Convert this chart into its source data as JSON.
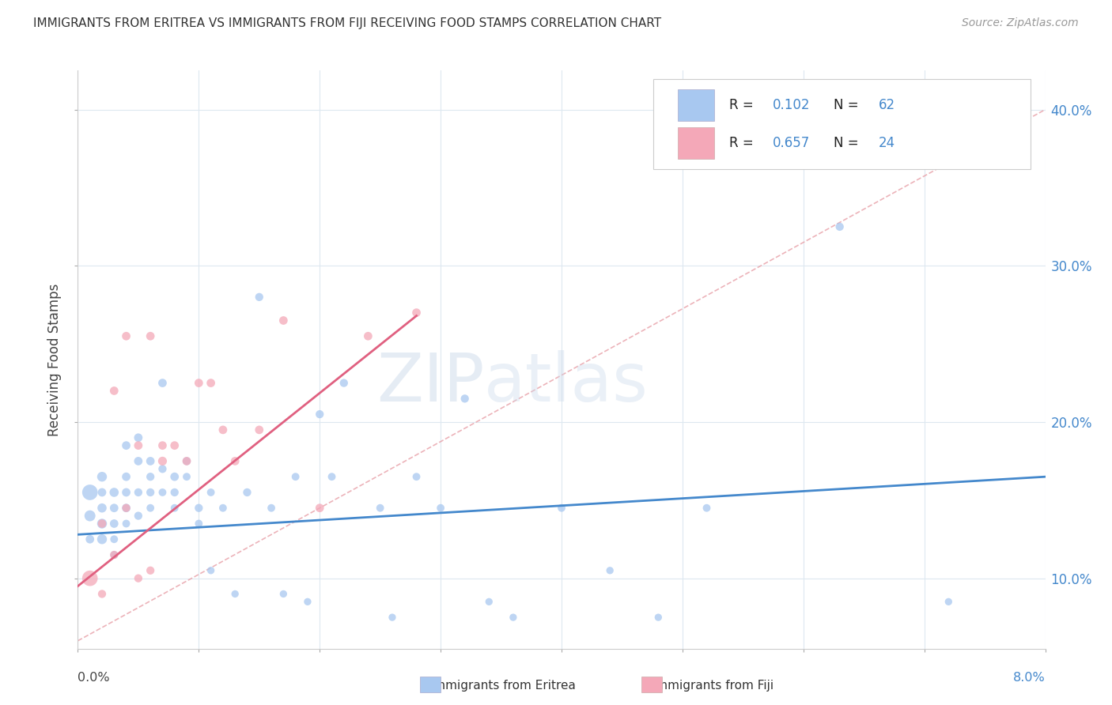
{
  "title": "IMMIGRANTS FROM ERITREA VS IMMIGRANTS FROM FIJI RECEIVING FOOD STAMPS CORRELATION CHART",
  "source": "Source: ZipAtlas.com",
  "ylabel": "Receiving Food Stamps",
  "yticks": [
    0.1,
    0.2,
    0.3,
    0.4
  ],
  "ytick_labels": [
    "10.0%",
    "20.0%",
    "30.0%",
    "40.0%"
  ],
  "xlim": [
    0.0,
    0.08
  ],
  "ylim": [
    0.055,
    0.425
  ],
  "watermark": "ZIPatlas",
  "color_eritrea": "#a8c8f0",
  "color_fiji": "#f4a8b8",
  "color_eritrea_line": "#4488cc",
  "color_fiji_line": "#e06080",
  "color_ref_line": "#e8a0a8",
  "eritrea_x": [
    0.001,
    0.001,
    0.001,
    0.002,
    0.002,
    0.002,
    0.002,
    0.002,
    0.003,
    0.003,
    0.003,
    0.003,
    0.003,
    0.004,
    0.004,
    0.004,
    0.004,
    0.004,
    0.005,
    0.005,
    0.005,
    0.005,
    0.006,
    0.006,
    0.006,
    0.006,
    0.007,
    0.007,
    0.007,
    0.008,
    0.008,
    0.008,
    0.009,
    0.009,
    0.01,
    0.01,
    0.011,
    0.011,
    0.012,
    0.013,
    0.014,
    0.015,
    0.016,
    0.017,
    0.018,
    0.019,
    0.02,
    0.021,
    0.022,
    0.025,
    0.026,
    0.028,
    0.03,
    0.032,
    0.034,
    0.036,
    0.04,
    0.044,
    0.048,
    0.052,
    0.063,
    0.072
  ],
  "eritrea_y": [
    0.155,
    0.14,
    0.125,
    0.165,
    0.155,
    0.145,
    0.135,
    0.125,
    0.155,
    0.145,
    0.135,
    0.125,
    0.115,
    0.185,
    0.165,
    0.155,
    0.145,
    0.135,
    0.19,
    0.175,
    0.155,
    0.14,
    0.175,
    0.165,
    0.155,
    0.145,
    0.225,
    0.17,
    0.155,
    0.165,
    0.155,
    0.145,
    0.175,
    0.165,
    0.145,
    0.135,
    0.155,
    0.105,
    0.145,
    0.09,
    0.155,
    0.28,
    0.145,
    0.09,
    0.165,
    0.085,
    0.205,
    0.165,
    0.225,
    0.145,
    0.075,
    0.165,
    0.145,
    0.215,
    0.085,
    0.075,
    0.145,
    0.105,
    0.075,
    0.145,
    0.325,
    0.085
  ],
  "eritrea_size": [
    200,
    100,
    60,
    80,
    60,
    70,
    80,
    80,
    70,
    60,
    60,
    50,
    50,
    60,
    60,
    60,
    60,
    50,
    60,
    60,
    55,
    55,
    60,
    55,
    55,
    50,
    60,
    55,
    50,
    60,
    55,
    50,
    55,
    50,
    55,
    50,
    50,
    45,
    50,
    45,
    55,
    55,
    50,
    45,
    50,
    45,
    55,
    50,
    55,
    50,
    45,
    50,
    50,
    55,
    45,
    45,
    50,
    45,
    45,
    50,
    55,
    45
  ],
  "fiji_x": [
    0.001,
    0.002,
    0.002,
    0.003,
    0.003,
    0.004,
    0.004,
    0.005,
    0.005,
    0.006,
    0.006,
    0.007,
    0.007,
    0.008,
    0.009,
    0.01,
    0.011,
    0.012,
    0.013,
    0.015,
    0.017,
    0.02,
    0.024,
    0.028
  ],
  "fiji_y": [
    0.1,
    0.135,
    0.09,
    0.22,
    0.115,
    0.255,
    0.145,
    0.185,
    0.1,
    0.255,
    0.105,
    0.185,
    0.175,
    0.185,
    0.175,
    0.225,
    0.225,
    0.195,
    0.175,
    0.195,
    0.265,
    0.145,
    0.255,
    0.27
  ],
  "fiji_size": [
    200,
    60,
    55,
    60,
    55,
    60,
    55,
    60,
    55,
    60,
    55,
    60,
    65,
    60,
    60,
    60,
    60,
    60,
    60,
    60,
    60,
    60,
    60,
    60
  ],
  "eritrea_trend_x": [
    0.0,
    0.08
  ],
  "eritrea_trend_y": [
    0.128,
    0.165
  ],
  "fiji_trend_x": [
    0.0,
    0.028
  ],
  "fiji_trend_y": [
    0.095,
    0.268
  ],
  "ref_line_x": [
    0.0,
    0.08
  ],
  "ref_line_y": [
    0.06,
    0.4
  ]
}
